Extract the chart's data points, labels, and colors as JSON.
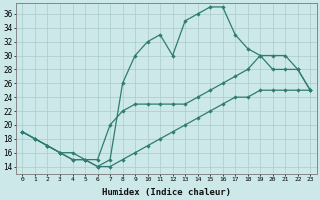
{
  "xlabel": "Humidex (Indice chaleur)",
  "bg_color": "#cce8e8",
  "line_color": "#2e7d6e",
  "grid_color": "#aacccc",
  "x_ticks": [
    0,
    1,
    2,
    3,
    4,
    5,
    6,
    7,
    8,
    9,
    10,
    11,
    12,
    13,
    14,
    15,
    16,
    17,
    18,
    19,
    20,
    21,
    22,
    23
  ],
  "ylim": [
    13,
    37.5
  ],
  "yticks": [
    14,
    16,
    18,
    20,
    22,
    24,
    26,
    28,
    30,
    32,
    34,
    36
  ],
  "line1": [
    19,
    18,
    17,
    16,
    15,
    15,
    14,
    15,
    26,
    30,
    32,
    33,
    30,
    35,
    36,
    37,
    37,
    33,
    31,
    30,
    28,
    28,
    28,
    25
  ],
  "line2": [
    19,
    18,
    17,
    16,
    16,
    15,
    15,
    20,
    22,
    23,
    23,
    23,
    23,
    23,
    24,
    25,
    26,
    27,
    28,
    30,
    30,
    30,
    28,
    25
  ],
  "line3": [
    19,
    18,
    17,
    16,
    15,
    15,
    14,
    14,
    15,
    16,
    17,
    18,
    19,
    20,
    21,
    22,
    23,
    24,
    24,
    25,
    25,
    25,
    25,
    25
  ]
}
